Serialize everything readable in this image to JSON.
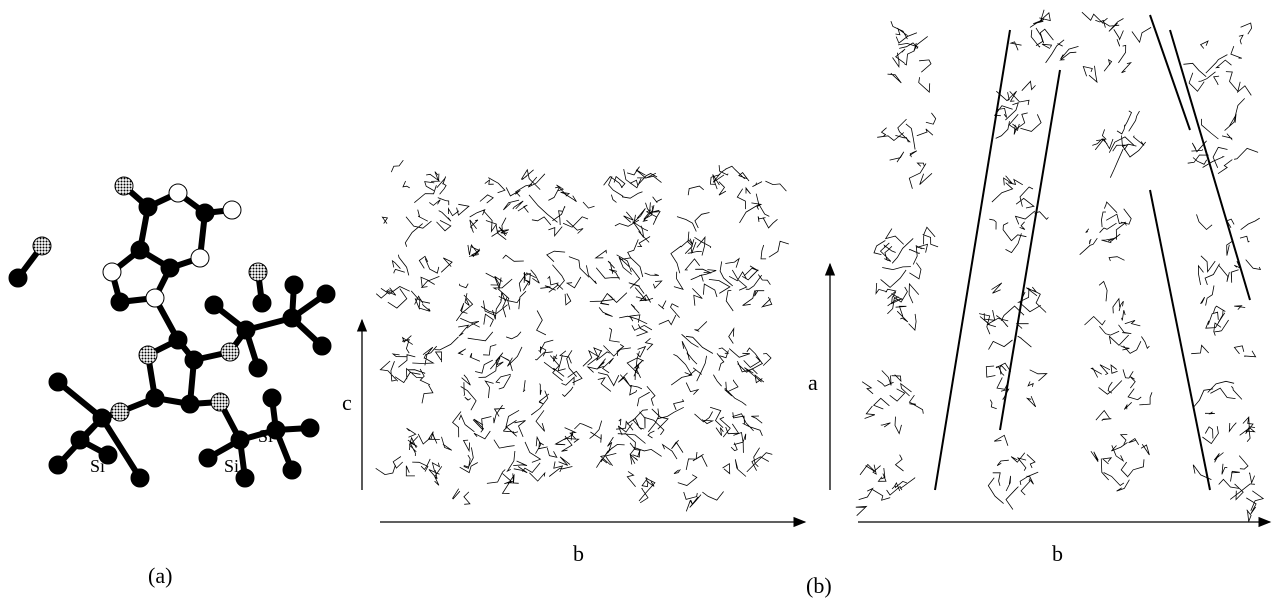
{
  "panel_a": {
    "label": "(a)",
    "atom_labels": [
      "Si",
      "Si",
      "Si"
    ]
  },
  "panel_b": {
    "label": "(b)",
    "left_view": {
      "vertical_axis": "c",
      "horizontal_axis": "b"
    },
    "right_view": {
      "vertical_axis": "a",
      "horizontal_axis": "b"
    }
  }
}
